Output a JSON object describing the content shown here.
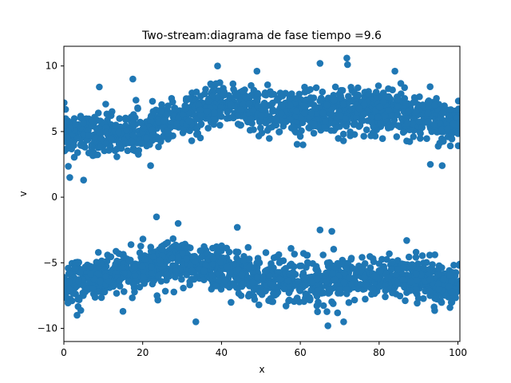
{
  "chart_data": {
    "type": "scatter",
    "title": "Two-stream:diagrama de fase  tiempo =9.6",
    "xlabel": "x",
    "ylabel": "v",
    "xlim": [
      0,
      100.5
    ],
    "ylim": [
      -11,
      11.5
    ],
    "xticks": [
      0,
      20,
      40,
      60,
      80,
      100
    ],
    "yticks": [
      -10,
      -5,
      0,
      5,
      10
    ],
    "grid": false,
    "marker_color": "#1f77b4",
    "series": [
      {
        "description": "upper stream band",
        "x_range": [
          0,
          100.5
        ],
        "center_curve": [
          [
            0,
            5.0
          ],
          [
            10,
            4.6
          ],
          [
            20,
            4.9
          ],
          [
            30,
            6.0
          ],
          [
            40,
            7.0
          ],
          [
            50,
            6.6
          ],
          [
            60,
            6.3
          ],
          [
            70,
            6.6
          ],
          [
            80,
            6.6
          ],
          [
            90,
            6.3
          ],
          [
            100,
            5.6
          ]
        ],
        "half_width": 1.3,
        "outliers": [
          [
            1.5,
            1.5
          ],
          [
            5,
            1.3
          ],
          [
            9,
            8.4
          ],
          [
            17.5,
            9.0
          ],
          [
            39,
            10.0
          ],
          [
            49,
            9.6
          ],
          [
            65,
            10.2
          ],
          [
            71.8,
            10.6
          ],
          [
            72,
            10.1
          ],
          [
            84,
            9.6
          ],
          [
            93,
            2.5
          ],
          [
            96,
            2.4
          ],
          [
            22,
            2.4
          ]
        ]
      },
      {
        "description": "lower stream band",
        "x_range": [
          0,
          100.5
        ],
        "center_curve": [
          [
            0,
            -6.6
          ],
          [
            10,
            -6.0
          ],
          [
            20,
            -5.4
          ],
          [
            30,
            -5.0
          ],
          [
            40,
            -5.4
          ],
          [
            50,
            -6.2
          ],
          [
            60,
            -6.5
          ],
          [
            70,
            -6.2
          ],
          [
            80,
            -6.0
          ],
          [
            90,
            -6.3
          ],
          [
            100,
            -6.8
          ]
        ],
        "half_width": 1.3,
        "outliers": [
          [
            23.5,
            -1.5
          ],
          [
            29,
            -2.0
          ],
          [
            44,
            -2.3
          ],
          [
            33.5,
            -9.5
          ],
          [
            65,
            -2.5
          ],
          [
            68,
            -2.6
          ],
          [
            67,
            -9.8
          ],
          [
            71,
            -9.5
          ],
          [
            87,
            -3.3
          ],
          [
            15,
            -8.7
          ]
        ]
      }
    ]
  }
}
